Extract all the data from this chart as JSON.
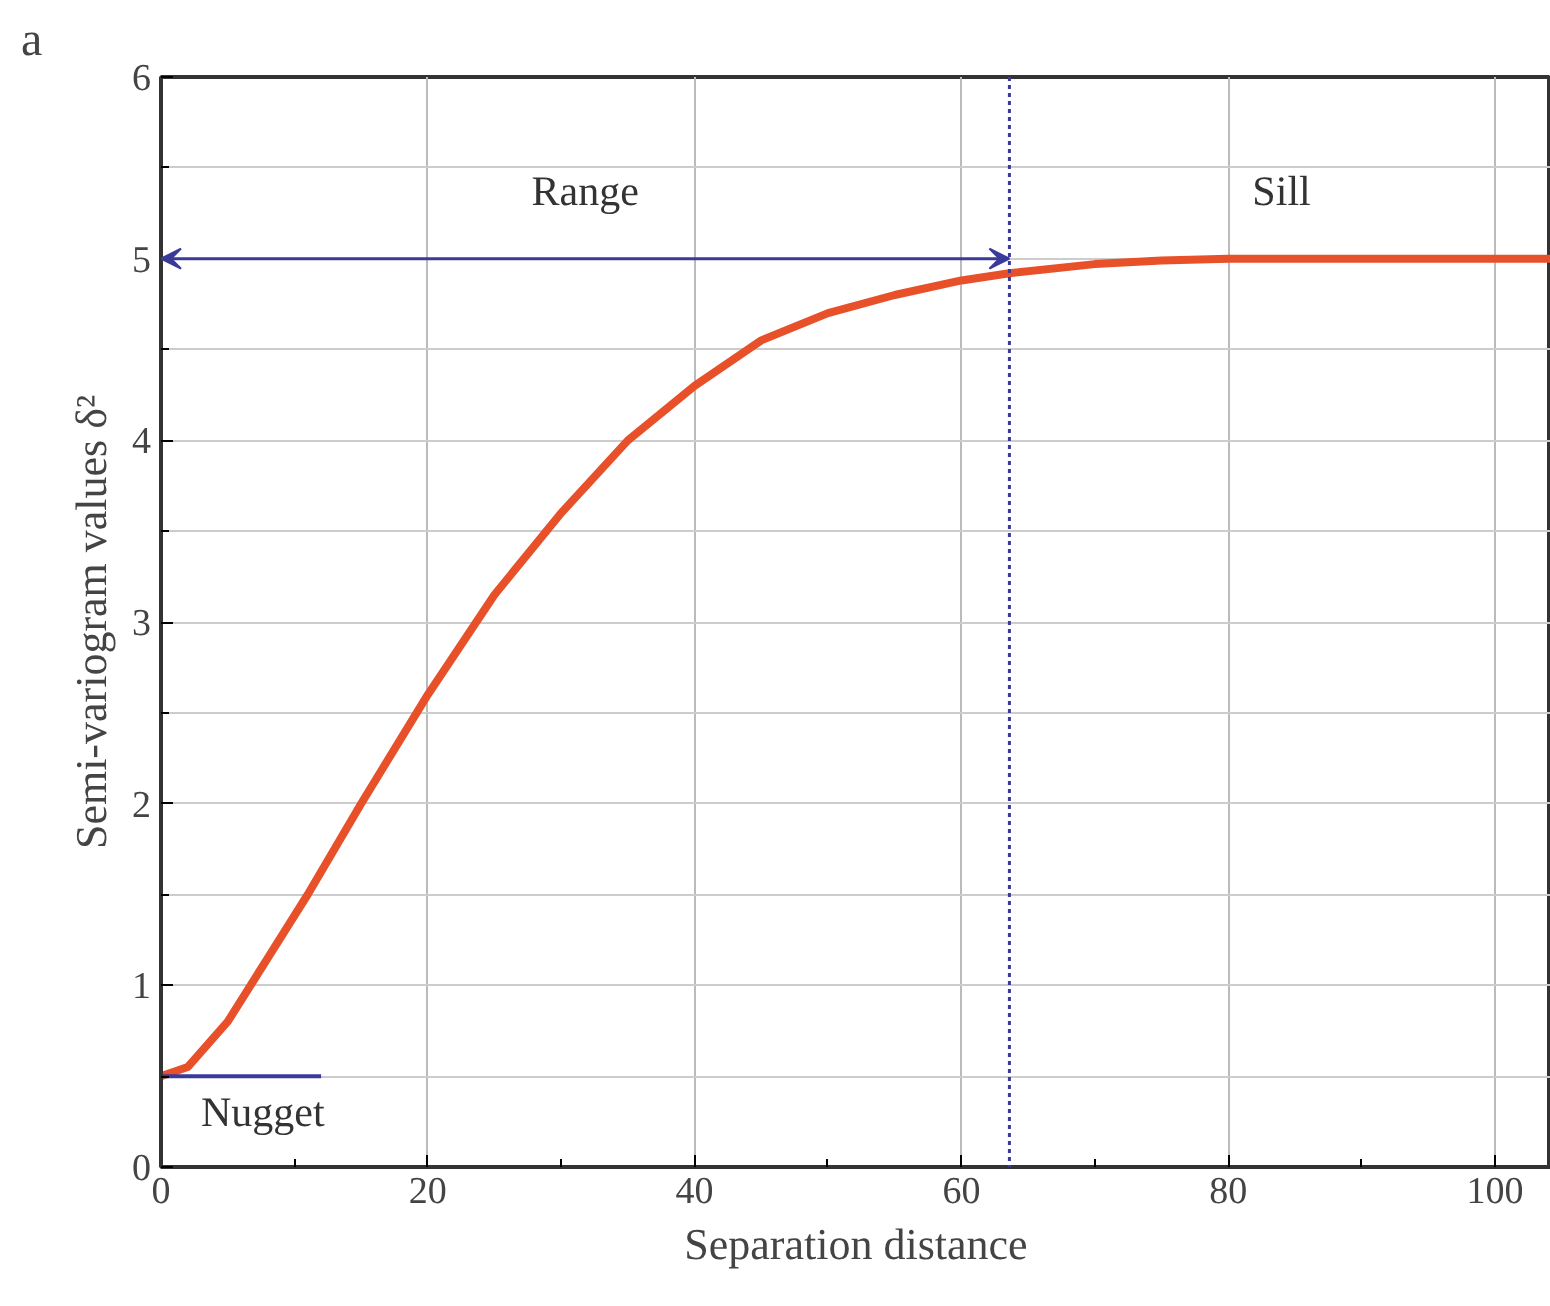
{
  "chart_data": {
    "type": "line",
    "title": "a",
    "xlabel": "Separation distance",
    "ylabel": "Semi-variogram values δ²",
    "xlim": [
      0,
      104.2
    ],
    "ylim": [
      0,
      6
    ],
    "xticks": [
      0,
      20,
      40,
      60,
      80,
      100
    ],
    "yticks": [
      0,
      1,
      2,
      3,
      4,
      5,
      6
    ],
    "grid": true,
    "series": [
      {
        "color": "#e8502a",
        "x": [
          0,
          2,
          5,
          8,
          11,
          15,
          20,
          25,
          30,
          35,
          40,
          45,
          50,
          55,
          60,
          63.6,
          70,
          75,
          80,
          90,
          104.2
        ],
        "values": [
          0.5,
          0.55,
          0.8,
          1.15,
          1.5,
          2.0,
          2.6,
          3.15,
          3.6,
          4.0,
          4.3,
          4.55,
          4.7,
          4.8,
          4.88,
          4.92,
          4.97,
          4.99,
          5.0,
          5.0,
          5.0
        ]
      },
      {
        "color": "#3a3a9a",
        "x": [
          0,
          12
        ],
        "values": [
          0.5,
          0.5
        ]
      }
    ],
    "ref_lines": [
      {
        "axis": "x",
        "value": 63.6,
        "color": "#3a3a9a",
        "line_style": "dotted"
      }
    ],
    "annotations": [
      "Range",
      {
        "text": "Sill",
        "x": 84,
        "y": 5
      },
      {
        "text": "Nugget",
        "x": 0,
        "y": 0.5
      }
    ]
  }
}
